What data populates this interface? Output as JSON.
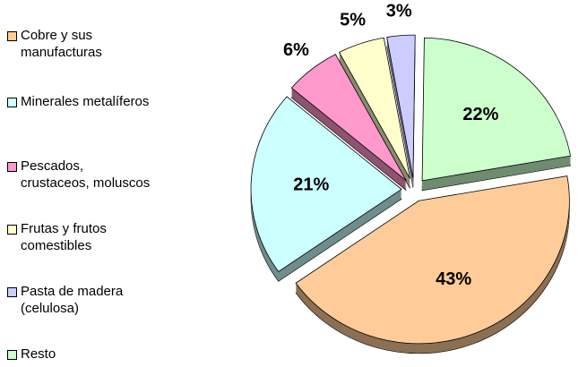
{
  "chart_data": {
    "type": "pie",
    "categories": [
      "Cobre y sus manufacturas",
      "Minerales metalíferos",
      "Pescados, crustaceos, moluscos",
      "Frutas y frutos comestibles",
      "Pasta de madera (celulosa)",
      "Resto"
    ],
    "values": [
      43,
      21,
      6,
      5,
      3,
      22
    ],
    "value_labels": [
      "43%",
      "21%",
      "6%",
      "5%",
      "3%",
      "22%"
    ],
    "colors": [
      "#FFCC99",
      "#CCFFFF",
      "#FF99CC",
      "#FFFFCC",
      "#CCCCFF",
      "#CCFFCC"
    ],
    "legend": "left"
  }
}
